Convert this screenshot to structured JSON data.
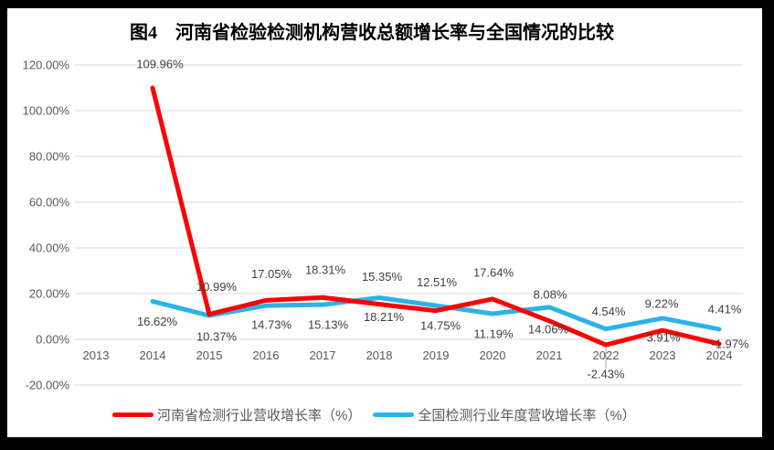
{
  "title": "图4　河南省检验检测机构营收总额增长率与全国情况的比较",
  "colors": {
    "henan": "#FF0000",
    "national": "#2BB3E9",
    "gridline": "#D9D9D9",
    "axis_text": "#595959",
    "label_text": "#404040",
    "leader": "#A6A6A6",
    "frame": "#000000",
    "background": "#FFFFFF"
  },
  "chart_data": {
    "type": "line",
    "title": "图4　河南省检验检测机构营收总额增长率与全国情况的比较",
    "categories": [
      "2013",
      "2014",
      "2015",
      "2016",
      "2017",
      "2018",
      "2019",
      "2020",
      "2021",
      "2022",
      "2023",
      "2024"
    ],
    "series": [
      {
        "name": "河南省检测行业营收增长率（%）",
        "color": "#FF0000",
        "values": [
          null,
          109.96,
          10.99,
          17.05,
          18.31,
          15.35,
          12.51,
          17.64,
          8.08,
          -2.43,
          3.91,
          -1.97
        ],
        "label_offsets": [
          null,
          [
            8,
            -26
          ],
          [
            8,
            -30
          ],
          [
            6,
            -29
          ],
          [
            3,
            -30
          ],
          [
            3,
            -30
          ],
          [
            1,
            -31
          ],
          [
            1,
            -29
          ],
          [
            1,
            -29
          ],
          [
            0,
            32
          ],
          [
            1,
            8
          ],
          [
            12,
            0
          ]
        ]
      },
      {
        "name": "全国检测行业年度营收增长率（%）",
        "color": "#2BB3E9",
        "values": [
          null,
          16.62,
          10.37,
          14.73,
          15.13,
          18.21,
          14.75,
          11.19,
          14.06,
          4.54,
          9.22,
          4.41
        ],
        "label_offsets": [
          null,
          [
            5,
            22
          ],
          [
            8,
            23
          ],
          [
            6,
            21
          ],
          [
            6,
            22
          ],
          [
            5,
            21
          ],
          [
            5,
            22
          ],
          [
            1,
            22
          ],
          [
            -1,
            24
          ],
          [
            3,
            -19
          ],
          [
            -1,
            -16
          ],
          [
            6,
            -22
          ]
        ]
      }
    ],
    "ylim": [
      -20,
      120
    ],
    "ytick_step": 20,
    "ytick_labels": [
      "120.00%",
      "100.00%",
      "80.00%",
      "60.00%",
      "40.00%",
      "20.00%",
      "0.00%",
      "-20.00%"
    ],
    "xlabel": "",
    "ylabel": "",
    "grid": true,
    "legend_position": "bottom",
    "label_format": "0.00%",
    "leader_line": {
      "category": "2022",
      "series": "河南省检测行业营收增长率（%）"
    }
  },
  "legend": {
    "items": [
      {
        "label": "河南省检测行业营收增长率（%）",
        "color": "#FF0000"
      },
      {
        "label": "全国检测行业年度营收增长率（%）",
        "color": "#2BB3E9"
      }
    ]
  }
}
